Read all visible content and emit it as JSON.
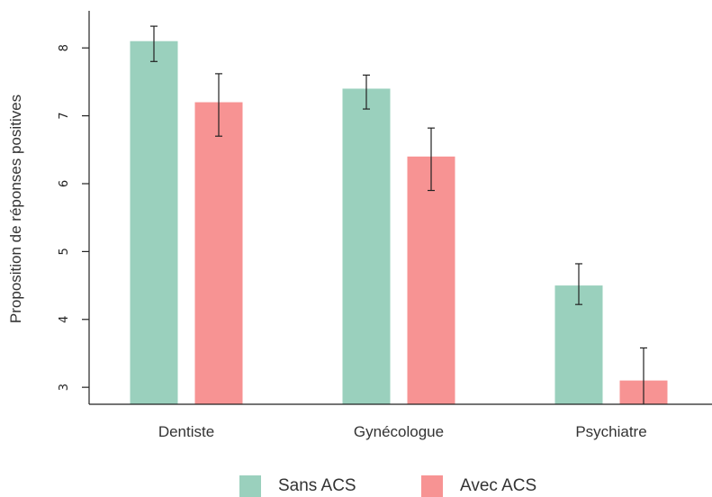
{
  "chart_data": {
    "type": "bar",
    "title": "",
    "xlabel": "",
    "ylabel": "Proposition de réponses positives",
    "ylim": [
      2.75,
      8.6
    ],
    "yticks": [
      "3",
      "4",
      "5",
      "6",
      "7",
      "8"
    ],
    "categories": [
      "Dentiste",
      "Gynécologue",
      "Psychiatre"
    ],
    "series": [
      {
        "name": "Sans ACS",
        "color": "#9ad0bd",
        "values": [
          8.1,
          7.4,
          4.5
        ],
        "error_low": [
          7.8,
          7.1,
          4.22
        ],
        "error_high": [
          8.32,
          7.6,
          4.82
        ]
      },
      {
        "name": "Avec ACS",
        "color": "#f79393",
        "values": [
          7.2,
          6.4,
          3.1
        ],
        "error_low": [
          6.7,
          5.9,
          2.75
        ],
        "error_high": [
          7.62,
          6.82,
          3.58
        ]
      }
    ],
    "legend_position": "bottom-center",
    "grid": false
  }
}
